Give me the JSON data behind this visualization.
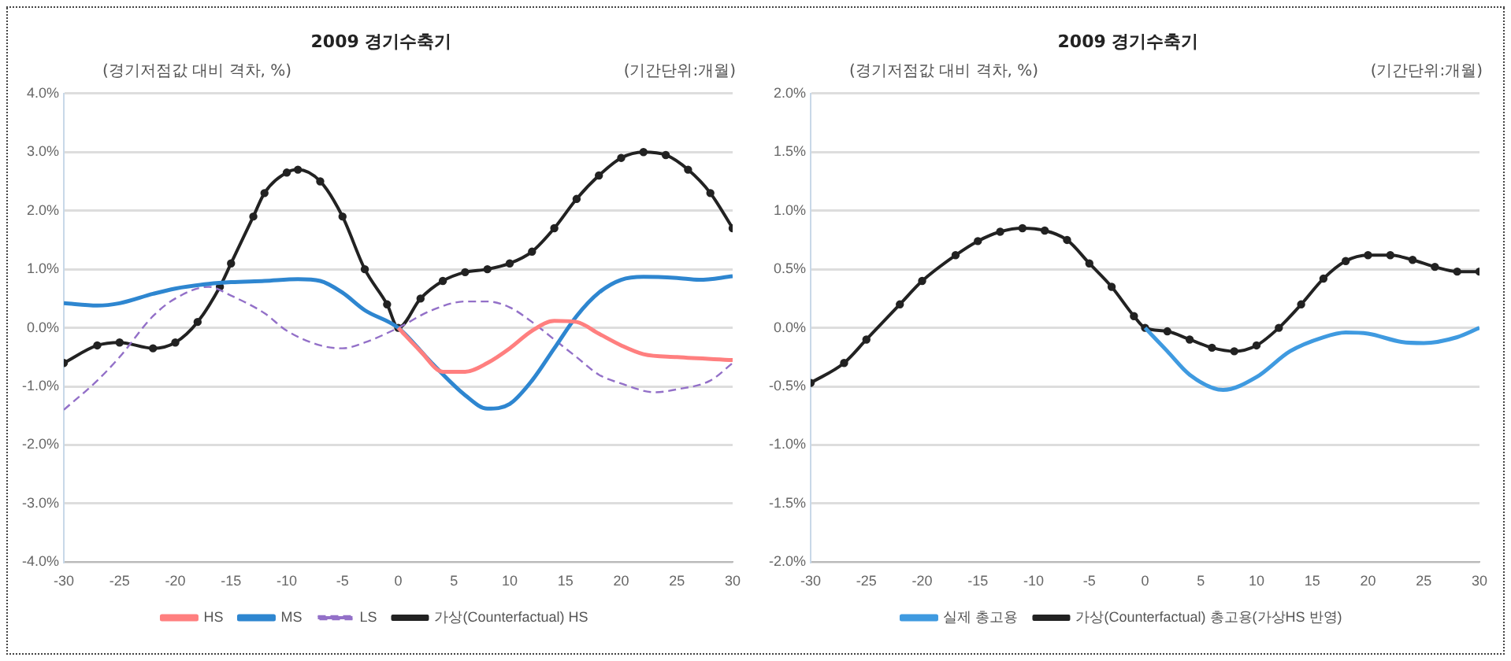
{
  "chart_data": [
    {
      "type": "line",
      "title": "2009  경기수축기",
      "ylabel": "(경기저점값 대비 격차, %)",
      "xlabel": "(기간단위:개월)",
      "xlim": [
        -30,
        30
      ],
      "xticks": [
        -30,
        -25,
        -20,
        -15,
        -10,
        -5,
        0,
        5,
        10,
        15,
        20,
        25,
        30
      ],
      "ylim": [
        -4,
        4
      ],
      "yticks": [
        {
          "value": -4,
          "label": "-4.0%"
        },
        {
          "value": -3,
          "label": "-3.0%"
        },
        {
          "value": -2,
          "label": "-2.0%"
        },
        {
          "value": -1,
          "label": "-1.0%"
        },
        {
          "value": 0,
          "label": "0.0%"
        },
        {
          "value": 1,
          "label": "1.0%"
        },
        {
          "value": 2,
          "label": "2.0%"
        },
        {
          "value": 3,
          "label": "3.0%"
        },
        {
          "value": 4,
          "label": "4.0%"
        }
      ],
      "grid": "y",
      "legend": "bottom",
      "series": [
        {
          "name": "HS",
          "color": "#ff7f7f",
          "marker": "none",
          "line_style": "solid",
          "x": [
            0,
            2,
            4,
            6,
            8,
            10,
            12,
            14,
            16,
            18,
            20,
            22,
            25,
            30
          ],
          "values": [
            0,
            -0.4,
            -0.75,
            -0.75,
            -0.6,
            -0.35,
            -0.05,
            0.12,
            0.1,
            -0.1,
            -0.3,
            -0.45,
            -0.5,
            -0.55
          ]
        },
        {
          "name": "MS",
          "color": "#2e86d0",
          "marker": "none",
          "line_style": "solid",
          "x": [
            -30,
            -27,
            -25,
            -22,
            -20,
            -17,
            -15,
            -12,
            -9,
            -7,
            -5,
            -3,
            0,
            3,
            6,
            8,
            10,
            12,
            14,
            16,
            18,
            20,
            22,
            25,
            27,
            30
          ],
          "values": [
            0.42,
            0.38,
            0.42,
            0.58,
            0.67,
            0.75,
            0.78,
            0.8,
            0.83,
            0.8,
            0.6,
            0.3,
            0,
            -0.6,
            -1.15,
            -1.38,
            -1.3,
            -0.9,
            -0.35,
            0.2,
            0.6,
            0.82,
            0.87,
            0.85,
            0.82,
            0.88
          ]
        },
        {
          "name": "LS",
          "color": "#9370c8",
          "marker": "none",
          "line_style": "dashed",
          "x": [
            -30,
            -27,
            -25,
            -22,
            -20,
            -17,
            -15,
            -12,
            -10,
            -7,
            -5,
            -3,
            0,
            3,
            6,
            8,
            10,
            12,
            14,
            16,
            18,
            20,
            23,
            25,
            28,
            30
          ],
          "values": [
            -1.4,
            -0.9,
            -0.5,
            0.2,
            0.5,
            0.7,
            0.55,
            0.25,
            -0.05,
            -0.3,
            -0.35,
            -0.25,
            0,
            0.3,
            0.45,
            0.45,
            0.35,
            0.1,
            -0.2,
            -0.5,
            -0.8,
            -0.95,
            -1.1,
            -1.05,
            -0.9,
            -0.6
          ]
        },
        {
          "name": "가상(Counterfactual) HS",
          "color": "#222222",
          "marker": "circle",
          "line_style": "solid",
          "x": [
            -30,
            -27,
            -25,
            -22,
            -20,
            -18,
            -16,
            -15,
            -13,
            -12,
            -10,
            -9,
            -7,
            -5,
            -3,
            -1,
            0,
            2,
            4,
            6,
            8,
            10,
            12,
            14,
            16,
            18,
            20,
            22,
            24,
            26,
            28,
            30
          ],
          "values": [
            -0.6,
            -0.3,
            -0.25,
            -0.35,
            -0.25,
            0.1,
            0.7,
            1.1,
            1.9,
            2.3,
            2.65,
            2.7,
            2.5,
            1.9,
            1.0,
            0.4,
            0,
            0.5,
            0.8,
            0.95,
            1.0,
            1.1,
            1.3,
            1.7,
            2.2,
            2.6,
            2.9,
            3.0,
            2.95,
            2.7,
            2.3,
            1.7
          ]
        }
      ]
    },
    {
      "type": "line",
      "title": "2009  경기수축기",
      "ylabel": "(경기저점값 대비 격차, %)",
      "xlabel": "(기간단위:개월)",
      "xlim": [
        -30,
        30
      ],
      "xticks": [
        -30,
        -25,
        -20,
        -15,
        -10,
        -5,
        0,
        5,
        10,
        15,
        20,
        25,
        30
      ],
      "ylim": [
        -2,
        2
      ],
      "yticks": [
        {
          "value": -2,
          "label": "-2.0%"
        },
        {
          "value": -1.5,
          "label": "-1.5%"
        },
        {
          "value": -1,
          "label": "-1.0%"
        },
        {
          "value": -0.5,
          "label": "-0.5%"
        },
        {
          "value": 0,
          "label": "0.0%"
        },
        {
          "value": 0.5,
          "label": "0.5%"
        },
        {
          "value": 1,
          "label": "1.0%"
        },
        {
          "value": 1.5,
          "label": "1.5%"
        },
        {
          "value": 2,
          "label": "2.0%"
        }
      ],
      "grid": "y",
      "legend": "bottom",
      "series": [
        {
          "name": "실제 총고용",
          "color": "#3f9ae0",
          "marker": "none",
          "line_style": "solid",
          "x": [
            0,
            2,
            4,
            7,
            10,
            13,
            16,
            18,
            20,
            23,
            25,
            28,
            30
          ],
          "values": [
            0,
            -0.2,
            -0.4,
            -0.53,
            -0.42,
            -0.2,
            -0.08,
            -0.04,
            -0.05,
            -0.12,
            -0.13,
            -0.08,
            0
          ]
        },
        {
          "name": "가상(Counterfactual) 총고용(가상HS 반영)",
          "color": "#222222",
          "marker": "circle",
          "line_style": "solid",
          "x": [
            -30,
            -27,
            -25,
            -22,
            -20,
            -17,
            -15,
            -13,
            -11,
            -9,
            -7,
            -5,
            -3,
            -1,
            0,
            2,
            4,
            6,
            8,
            10,
            12,
            14,
            16,
            18,
            20,
            22,
            24,
            26,
            28,
            30
          ],
          "values": [
            -0.47,
            -0.3,
            -0.1,
            0.2,
            0.4,
            0.62,
            0.74,
            0.82,
            0.85,
            0.83,
            0.75,
            0.55,
            0.35,
            0.1,
            0,
            -0.03,
            -0.1,
            -0.17,
            -0.2,
            -0.15,
            0,
            0.2,
            0.42,
            0.57,
            0.62,
            0.62,
            0.58,
            0.52,
            0.48,
            0.48
          ]
        }
      ]
    }
  ]
}
